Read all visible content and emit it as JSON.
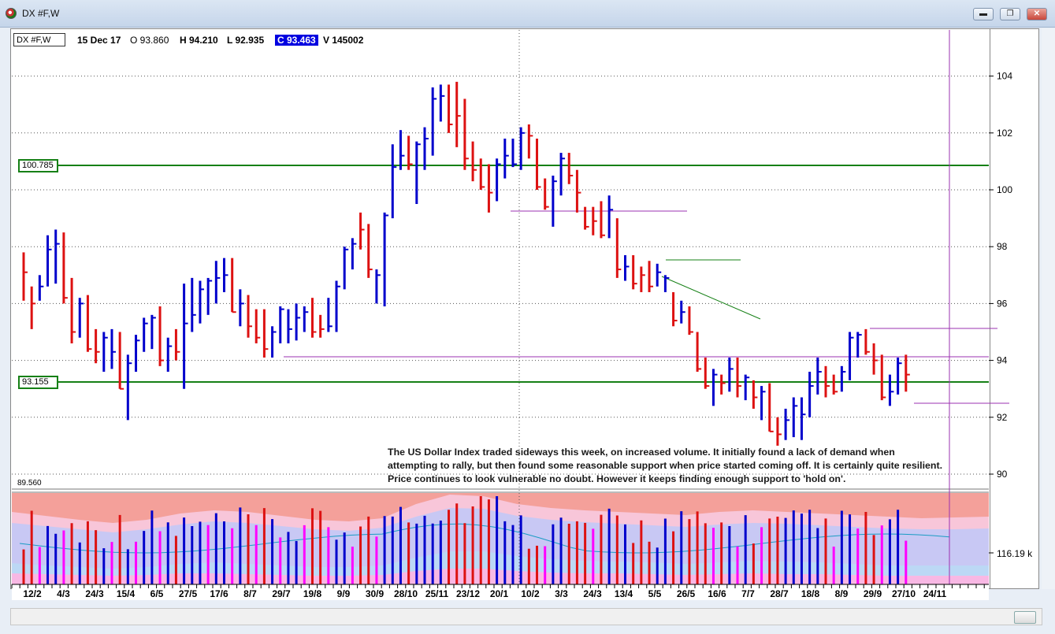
{
  "window": {
    "title": "DX #F,W",
    "btn_min": "▬",
    "btn_max": "❐",
    "btn_close": "✕"
  },
  "header": {
    "symbol": "DX #F,W",
    "date": "15 Dec 17",
    "open": "O 93.860",
    "high": "H 94.210",
    "low": "L 92.935",
    "close": "C 93.463",
    "volume": "V 145002"
  },
  "levels": {
    "upper": "100.785",
    "lower": "93.155",
    "min_label": "89.560"
  },
  "volume_axis_label": "116.19 k",
  "commentary": "The US Dollar Index traded sideways this week, on increased volume.  It initially found a lack of demand when attempting to rally, but then found some reasonable support when price started coming off.  It is certainly quite resilient.   Price continues to look vulnerable no doubt.  However it keeps finding enough support to 'hold on'.",
  "colors": {
    "up": "#0000cc",
    "down": "#dd1111",
    "magenta": "#ff00ff",
    "support": "#168016",
    "trend": "#9b30b0"
  },
  "chart_data": {
    "type": "ohlc-bar",
    "price_axis": {
      "ticks": [
        90,
        92,
        94,
        96,
        98,
        100,
        102,
        104
      ],
      "ylim": [
        89.56,
        105.4
      ]
    },
    "date_labels": [
      "12/2",
      "4/3",
      "24/3",
      "15/4",
      "6/5",
      "27/5",
      "17/6",
      "8/7",
      "29/7",
      "19/8",
      "9/9",
      "30/9",
      "28/10",
      "25/11",
      "23/12",
      "20/1",
      "10/2",
      "3/3",
      "24/3",
      "13/4",
      "5/5",
      "26/5",
      "16/6",
      "7/7",
      "28/7",
      "18/8",
      "8/9",
      "29/9",
      "27/10",
      "24/11"
    ],
    "bars": [
      {
        "o": 96.9,
        "h": 97.8,
        "l": 96.1,
        "c": 97.1,
        "d": "down"
      },
      {
        "o": 95.2,
        "h": 96.6,
        "l": 95.1,
        "c": 96.0,
        "d": "down"
      },
      {
        "o": 96.5,
        "h": 97.0,
        "l": 96.1,
        "c": 96.6,
        "d": "up"
      },
      {
        "o": 96.7,
        "h": 98.4,
        "l": 96.6,
        "c": 97.9,
        "d": "up"
      },
      {
        "o": 98.0,
        "h": 98.6,
        "l": 96.7,
        "c": 98.1,
        "d": "up"
      },
      {
        "o": 96.2,
        "h": 98.5,
        "l": 96.0,
        "c": 96.2,
        "d": "down"
      },
      {
        "o": 95.0,
        "h": 96.9,
        "l": 94.6,
        "c": 95.0,
        "d": "down"
      },
      {
        "o": 95.5,
        "h": 96.2,
        "l": 94.8,
        "c": 96.0,
        "d": "up"
      },
      {
        "o": 94.4,
        "h": 96.3,
        "l": 94.3,
        "c": 94.4,
        "d": "down"
      },
      {
        "o": 94.3,
        "h": 95.1,
        "l": 93.9,
        "c": 94.3,
        "d": "down"
      },
      {
        "o": 94.1,
        "h": 95.0,
        "l": 93.6,
        "c": 94.8,
        "d": "up"
      },
      {
        "o": 94.2,
        "h": 95.1,
        "l": 93.7,
        "c": 94.3,
        "d": "up"
      },
      {
        "o": 93.1,
        "h": 95.0,
        "l": 93.0,
        "c": 93.0,
        "d": "down"
      },
      {
        "o": 93.2,
        "h": 94.2,
        "l": 91.9,
        "c": 93.9,
        "d": "up"
      },
      {
        "o": 93.9,
        "h": 94.9,
        "l": 93.6,
        "c": 94.7,
        "d": "up"
      },
      {
        "o": 94.5,
        "h": 95.5,
        "l": 94.3,
        "c": 95.3,
        "d": "up"
      },
      {
        "o": 95.2,
        "h": 95.6,
        "l": 94.4,
        "c": 95.5,
        "d": "up"
      },
      {
        "o": 95.4,
        "h": 95.9,
        "l": 93.8,
        "c": 94.0,
        "d": "down"
      },
      {
        "o": 94.0,
        "h": 94.8,
        "l": 93.6,
        "c": 94.5,
        "d": "up"
      },
      {
        "o": 94.3,
        "h": 95.1,
        "l": 94.0,
        "c": 94.3,
        "d": "down"
      },
      {
        "o": 94.3,
        "h": 96.7,
        "l": 93.0,
        "c": 95.3,
        "d": "up"
      },
      {
        "o": 95.4,
        "h": 96.9,
        "l": 95.0,
        "c": 95.6,
        "d": "up"
      },
      {
        "o": 95.5,
        "h": 96.8,
        "l": 95.3,
        "c": 96.5,
        "d": "up"
      },
      {
        "o": 96.6,
        "h": 96.9,
        "l": 95.6,
        "c": 96.8,
        "d": "up"
      },
      {
        "o": 96.8,
        "h": 97.5,
        "l": 96.0,
        "c": 96.9,
        "d": "up"
      },
      {
        "o": 96.9,
        "h": 97.6,
        "l": 96.4,
        "c": 97.0,
        "d": "up"
      },
      {
        "o": 97.4,
        "h": 97.6,
        "l": 95.7,
        "c": 95.7,
        "d": "down"
      },
      {
        "o": 95.6,
        "h": 96.5,
        "l": 95.2,
        "c": 96.0,
        "d": "up"
      },
      {
        "o": 96.0,
        "h": 96.3,
        "l": 94.8,
        "c": 95.2,
        "d": "down"
      },
      {
        "o": 95.2,
        "h": 95.8,
        "l": 94.6,
        "c": 94.8,
        "d": "down"
      },
      {
        "o": 94.8,
        "h": 95.8,
        "l": 94.1,
        "c": 94.4,
        "d": "down"
      },
      {
        "o": 94.4,
        "h": 95.2,
        "l": 94.1,
        "c": 95.0,
        "d": "up"
      },
      {
        "o": 95.0,
        "h": 95.9,
        "l": 94.6,
        "c": 95.8,
        "d": "up"
      },
      {
        "o": 95.4,
        "h": 95.8,
        "l": 94.6,
        "c": 95.1,
        "d": "up"
      },
      {
        "o": 95.2,
        "h": 96.0,
        "l": 94.7,
        "c": 95.5,
        "d": "up"
      },
      {
        "o": 95.5,
        "h": 95.9,
        "l": 95.0,
        "c": 95.7,
        "d": "up"
      },
      {
        "o": 95.6,
        "h": 96.2,
        "l": 94.8,
        "c": 95.0,
        "d": "down"
      },
      {
        "o": 95.0,
        "h": 95.6,
        "l": 94.8,
        "c": 95.1,
        "d": "down"
      },
      {
        "o": 95.0,
        "h": 96.2,
        "l": 95.0,
        "c": 95.2,
        "d": "up"
      },
      {
        "o": 95.2,
        "h": 96.8,
        "l": 95.0,
        "c": 96.6,
        "d": "up"
      },
      {
        "o": 96.6,
        "h": 98.0,
        "l": 96.5,
        "c": 97.9,
        "d": "up"
      },
      {
        "o": 97.8,
        "h": 98.3,
        "l": 97.2,
        "c": 98.1,
        "d": "up"
      },
      {
        "o": 98.3,
        "h": 99.2,
        "l": 97.9,
        "c": 98.6,
        "d": "down"
      },
      {
        "o": 98.6,
        "h": 98.8,
        "l": 96.9,
        "c": 97.2,
        "d": "down"
      },
      {
        "o": 97.1,
        "h": 97.2,
        "l": 96.0,
        "c": 97.0,
        "d": "up"
      },
      {
        "o": 97.0,
        "h": 99.2,
        "l": 95.9,
        "c": 99.1,
        "d": "up"
      },
      {
        "o": 99.1,
        "h": 101.6,
        "l": 99.0,
        "c": 100.8,
        "d": "up"
      },
      {
        "o": 101.1,
        "h": 102.1,
        "l": 100.7,
        "c": 101.2,
        "d": "up"
      },
      {
        "o": 101.3,
        "h": 101.9,
        "l": 100.7,
        "c": 100.9,
        "d": "down"
      },
      {
        "o": 101.0,
        "h": 101.7,
        "l": 99.5,
        "c": 101.6,
        "d": "up"
      },
      {
        "o": 101.3,
        "h": 102.2,
        "l": 100.7,
        "c": 101.8,
        "d": "up"
      },
      {
        "o": 101.7,
        "h": 103.6,
        "l": 101.2,
        "c": 103.2,
        "d": "up"
      },
      {
        "o": 103.2,
        "h": 103.7,
        "l": 102.4,
        "c": 103.3,
        "d": "up"
      },
      {
        "o": 103.1,
        "h": 103.7,
        "l": 102.0,
        "c": 102.3,
        "d": "down"
      },
      {
        "o": 102.3,
        "h": 103.8,
        "l": 101.5,
        "c": 102.6,
        "d": "down"
      },
      {
        "o": 102.5,
        "h": 103.2,
        "l": 100.7,
        "c": 101.1,
        "d": "down"
      },
      {
        "o": 101.1,
        "h": 101.7,
        "l": 100.3,
        "c": 100.7,
        "d": "down"
      },
      {
        "o": 100.7,
        "h": 101.1,
        "l": 100.0,
        "c": 100.1,
        "d": "down"
      },
      {
        "o": 100.1,
        "h": 100.9,
        "l": 99.2,
        "c": 99.9,
        "d": "down"
      },
      {
        "o": 99.9,
        "h": 101.1,
        "l": 99.6,
        "c": 100.9,
        "d": "up"
      },
      {
        "o": 100.6,
        "h": 101.8,
        "l": 100.4,
        "c": 101.2,
        "d": "up"
      },
      {
        "o": 101.2,
        "h": 101.8,
        "l": 100.8,
        "c": 100.9,
        "d": "up"
      },
      {
        "o": 101.1,
        "h": 102.2,
        "l": 100.7,
        "c": 102.0,
        "d": "up"
      },
      {
        "o": 101.8,
        "h": 102.3,
        "l": 101.1,
        "c": 101.9,
        "d": "down"
      },
      {
        "o": 101.9,
        "h": 101.8,
        "l": 100.0,
        "c": 100.1,
        "d": "down"
      },
      {
        "o": 100.1,
        "h": 100.4,
        "l": 99.3,
        "c": 99.4,
        "d": "down"
      },
      {
        "o": 99.6,
        "h": 100.5,
        "l": 98.7,
        "c": 100.3,
        "d": "up"
      },
      {
        "o": 100.3,
        "h": 101.3,
        "l": 99.8,
        "c": 101.1,
        "d": "up"
      },
      {
        "o": 101.1,
        "h": 101.3,
        "l": 100.2,
        "c": 100.5,
        "d": "down"
      },
      {
        "o": 100.5,
        "h": 100.7,
        "l": 99.2,
        "c": 99.9,
        "d": "down"
      },
      {
        "o": 99.1,
        "h": 99.4,
        "l": 98.6,
        "c": 98.7,
        "d": "down"
      },
      {
        "o": 98.7,
        "h": 99.4,
        "l": 98.4,
        "c": 98.9,
        "d": "down"
      },
      {
        "o": 98.8,
        "h": 99.6,
        "l": 98.3,
        "c": 98.4,
        "d": "down"
      },
      {
        "o": 98.4,
        "h": 99.8,
        "l": 98.3,
        "c": 99.3,
        "d": "up"
      },
      {
        "o": 99.0,
        "h": 99.0,
        "l": 96.9,
        "c": 97.2,
        "d": "down"
      },
      {
        "o": 97.1,
        "h": 97.7,
        "l": 96.8,
        "c": 97.3,
        "d": "up"
      },
      {
        "o": 97.3,
        "h": 97.7,
        "l": 96.5,
        "c": 96.7,
        "d": "down"
      },
      {
        "o": 96.8,
        "h": 97.3,
        "l": 96.4,
        "c": 97.0,
        "d": "down"
      },
      {
        "o": 97.0,
        "h": 97.5,
        "l": 96.4,
        "c": 96.6,
        "d": "down"
      },
      {
        "o": 96.7,
        "h": 97.4,
        "l": 96.6,
        "c": 97.1,
        "d": "up"
      },
      {
        "o": 97.1,
        "h": 97.0,
        "l": 96.4,
        "c": 96.9,
        "d": "up"
      },
      {
        "o": 96.2,
        "h": 96.4,
        "l": 95.2,
        "c": 95.4,
        "d": "down"
      },
      {
        "o": 95.5,
        "h": 96.1,
        "l": 95.3,
        "c": 95.7,
        "d": "up"
      },
      {
        "o": 95.9,
        "h": 95.9,
        "l": 94.9,
        "c": 95.0,
        "d": "down"
      },
      {
        "o": 94.9,
        "h": 95.0,
        "l": 93.6,
        "c": 93.7,
        "d": "down"
      },
      {
        "o": 93.7,
        "h": 94.1,
        "l": 93.0,
        "c": 93.1,
        "d": "down"
      },
      {
        "o": 93.2,
        "h": 93.7,
        "l": 92.4,
        "c": 93.5,
        "d": "up"
      },
      {
        "o": 93.2,
        "h": 93.5,
        "l": 92.8,
        "c": 93.2,
        "d": "down"
      },
      {
        "o": 93.2,
        "h": 94.1,
        "l": 92.9,
        "c": 93.7,
        "d": "up"
      },
      {
        "o": 93.0,
        "h": 94.1,
        "l": 92.7,
        "c": 93.1,
        "d": "down"
      },
      {
        "o": 93.2,
        "h": 93.5,
        "l": 92.6,
        "c": 93.4,
        "d": "up"
      },
      {
        "o": 93.3,
        "h": 93.3,
        "l": 92.3,
        "c": 92.7,
        "d": "down"
      },
      {
        "o": 92.9,
        "h": 93.1,
        "l": 91.9,
        "c": 92.9,
        "d": "up"
      },
      {
        "o": 92.8,
        "h": 93.2,
        "l": 91.5,
        "c": 91.5,
        "d": "down"
      },
      {
        "o": 91.4,
        "h": 92.0,
        "l": 91.0,
        "c": 91.4,
        "d": "down"
      },
      {
        "o": 91.4,
        "h": 92.3,
        "l": 91.2,
        "c": 91.9,
        "d": "up"
      },
      {
        "o": 91.6,
        "h": 92.7,
        "l": 91.3,
        "c": 92.4,
        "d": "up"
      },
      {
        "o": 92.3,
        "h": 92.7,
        "l": 91.2,
        "c": 92.1,
        "d": "up"
      },
      {
        "o": 92.1,
        "h": 93.6,
        "l": 92.0,
        "c": 93.1,
        "d": "up"
      },
      {
        "o": 93.2,
        "h": 94.1,
        "l": 92.8,
        "c": 93.6,
        "d": "up"
      },
      {
        "o": 93.3,
        "h": 93.8,
        "l": 92.7,
        "c": 93.1,
        "d": "down"
      },
      {
        "o": 93.0,
        "h": 93.5,
        "l": 92.8,
        "c": 92.9,
        "d": "down"
      },
      {
        "o": 93.1,
        "h": 93.8,
        "l": 92.9,
        "c": 93.6,
        "d": "up"
      },
      {
        "o": 93.6,
        "h": 95.0,
        "l": 93.3,
        "c": 94.8,
        "d": "up"
      },
      {
        "o": 94.8,
        "h": 95.0,
        "l": 94.1,
        "c": 94.9,
        "d": "up"
      },
      {
        "o": 94.9,
        "h": 95.1,
        "l": 94.2,
        "c": 94.3,
        "d": "down"
      },
      {
        "o": 94.3,
        "h": 94.6,
        "l": 93.5,
        "c": 94.0,
        "d": "down"
      },
      {
        "o": 94.0,
        "h": 94.2,
        "l": 92.6,
        "c": 92.7,
        "d": "down"
      },
      {
        "o": 92.6,
        "h": 93.5,
        "l": 92.4,
        "c": 92.9,
        "d": "up"
      },
      {
        "o": 93.0,
        "h": 94.1,
        "l": 92.8,
        "c": 93.9,
        "d": "up"
      },
      {
        "o": 93.9,
        "h": 94.2,
        "l": 92.9,
        "c": 93.5,
        "d": "down"
      }
    ],
    "volume_max": 164
  }
}
